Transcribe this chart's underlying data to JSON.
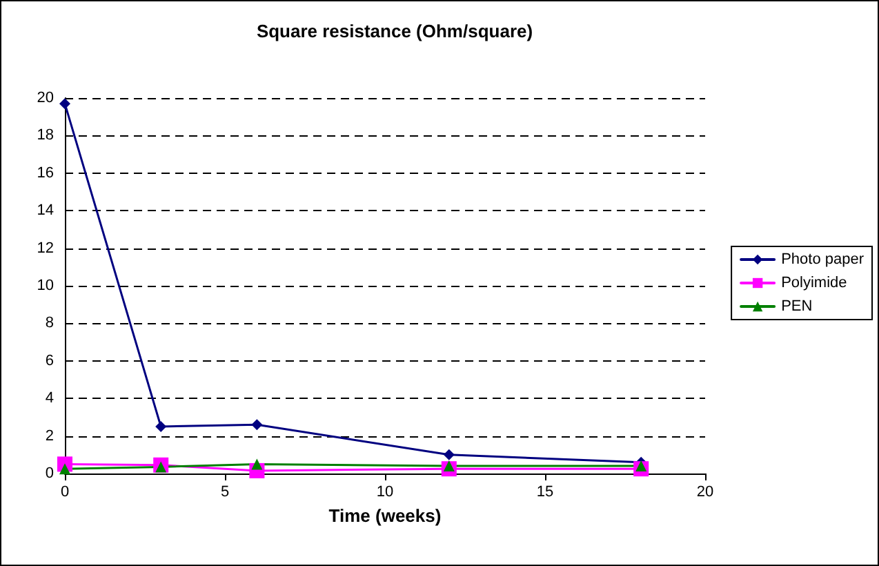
{
  "chart_data": {
    "type": "line",
    "title": "Square resistance (Ohm/square)",
    "xlabel": "Time (weeks)",
    "x": [
      0,
      3,
      6,
      12,
      18
    ],
    "series": [
      {
        "name": "Photo paper",
        "color": "#000080",
        "marker": "diamond",
        "values": [
          19.7,
          2.5,
          2.6,
          1.0,
          0.6
        ]
      },
      {
        "name": "Polyimide",
        "color": "#ff00ff",
        "marker": "square",
        "values": [
          0.5,
          0.45,
          0.15,
          0.25,
          0.25
        ]
      },
      {
        "name": "PEN",
        "color": "#008000",
        "marker": "triangle",
        "values": [
          0.25,
          0.35,
          0.5,
          0.4,
          0.4
        ]
      }
    ],
    "xlim": [
      0,
      20
    ],
    "xticks": [
      0,
      5,
      10,
      15,
      20
    ],
    "ylim": [
      0,
      20
    ],
    "yticks": [
      0,
      2,
      4,
      6,
      8,
      10,
      12,
      14,
      16,
      18,
      20
    ],
    "grid": "y",
    "legend": "right",
    "line_style": "solid"
  }
}
